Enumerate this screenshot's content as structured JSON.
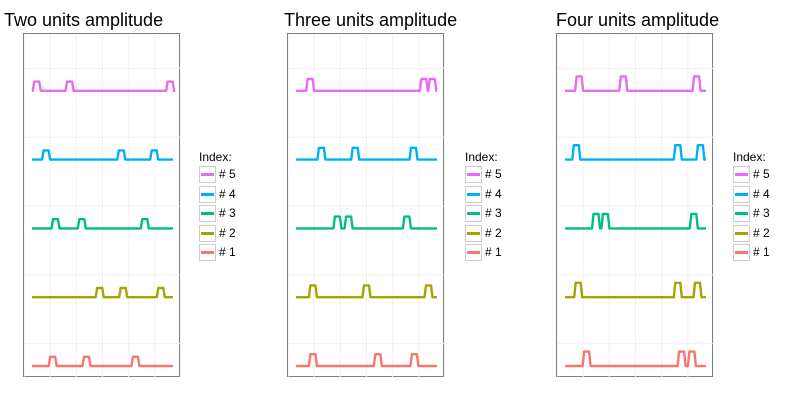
{
  "legend": {
    "title": "Index:",
    "items": [
      {
        "label": "# 5",
        "color": "#E76BF3"
      },
      {
        "label": "# 4",
        "color": "#00B0F6"
      },
      {
        "label": "# 3",
        "color": "#00BF7D"
      },
      {
        "label": "# 2",
        "color": "#A3A500"
      },
      {
        "label": "# 1",
        "color": "#F8766D"
      }
    ]
  },
  "chart_data": [
    {
      "type": "line",
      "title": "Two units amplitude",
      "xlabel": "",
      "ylabel": "",
      "grid": true,
      "legend_position": "right",
      "pulse_amplitude": 2,
      "series": [
        {
          "name": "# 5",
          "color": "#E76BF3",
          "pulses_at": [
            5,
            40,
            147
          ]
        },
        {
          "name": "# 4",
          "color": "#00B0F6",
          "pulses_at": [
            15,
            95,
            130
          ]
        },
        {
          "name": "# 3",
          "color": "#00BF7D",
          "pulses_at": [
            25,
            53,
            120
          ]
        },
        {
          "name": "# 2",
          "color": "#A3A500",
          "pulses_at": [
            72,
            97,
            137
          ]
        },
        {
          "name": "# 1",
          "color": "#F8766D",
          "pulses_at": [
            22,
            58,
            110
          ]
        }
      ]
    },
    {
      "type": "line",
      "title": "Three units amplitude",
      "xlabel": "",
      "ylabel": "",
      "grid": true,
      "legend_position": "right",
      "pulse_amplitude": 3,
      "series": [
        {
          "name": "# 5",
          "color": "#E76BF3",
          "pulses_at": [
            15,
            136,
            145
          ]
        },
        {
          "name": "# 4",
          "color": "#00B0F6",
          "pulses_at": [
            27,
            63,
            125
          ]
        },
        {
          "name": "# 3",
          "color": "#00BF7D",
          "pulses_at": [
            44,
            56,
            118
          ]
        },
        {
          "name": "# 2",
          "color": "#A3A500",
          "pulses_at": [
            18,
            75,
            141
          ]
        },
        {
          "name": "# 1",
          "color": "#F8766D",
          "pulses_at": [
            18,
            87,
            126
          ]
        }
      ]
    },
    {
      "type": "line",
      "title": "Four units amplitude",
      "xlabel": "",
      "ylabel": "",
      "grid": true,
      "legend_position": "right",
      "pulse_amplitude": 4,
      "series": [
        {
          "name": "# 5",
          "color": "#E76BF3",
          "pulses_at": [
            15,
            62,
            140
          ]
        },
        {
          "name": "# 4",
          "color": "#00B0F6",
          "pulses_at": [
            12,
            120,
            144
          ]
        },
        {
          "name": "# 3",
          "color": "#00BF7D",
          "pulses_at": [
            33,
            43,
            137
          ]
        },
        {
          "name": "# 2",
          "color": "#A3A500",
          "pulses_at": [
            14,
            120,
            141
          ]
        },
        {
          "name": "# 1",
          "color": "#F8766D",
          "pulses_at": [
            23,
            124,
            135
          ]
        }
      ]
    }
  ]
}
